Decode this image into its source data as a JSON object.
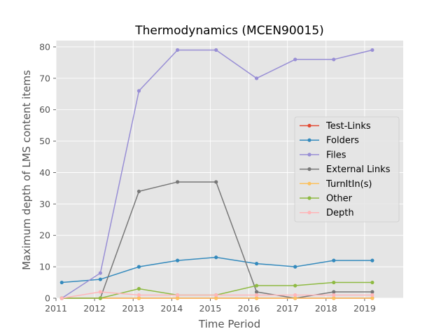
{
  "chart_data": {
    "type": "line",
    "title": "Thermodynamics (MCEN90015)",
    "xlabel": "Time Period",
    "ylabel": "Maximum depth of LMS content items",
    "xlim": [
      2011,
      2020
    ],
    "ylim": [
      0,
      82
    ],
    "x_ticks": [
      "2011",
      "2012",
      "2013",
      "2014",
      "2015",
      "2016",
      "2017",
      "2018",
      "2019"
    ],
    "y_ticks": [
      "0",
      "10",
      "20",
      "30",
      "40",
      "50",
      "60",
      "70",
      "80"
    ],
    "x": [
      2011.15,
      2012.15,
      2013.15,
      2014.15,
      2015.15,
      2016.2,
      2017.2,
      2018.2,
      2019.2
    ],
    "series": [
      {
        "name": "Test-Links",
        "color": "#e24a33",
        "values": [
          0,
          0,
          0,
          0,
          0,
          0,
          0,
          0,
          0
        ]
      },
      {
        "name": "Folders",
        "color": "#348abd",
        "values": [
          5,
          6,
          10,
          12,
          13,
          11,
          10,
          12,
          12
        ]
      },
      {
        "name": "Files",
        "color": "#988ed5",
        "values": [
          0,
          8,
          66,
          79,
          79,
          70,
          76,
          76,
          79
        ]
      },
      {
        "name": "External Links",
        "color": "#777777",
        "values": [
          0,
          0,
          34,
          37,
          37,
          2,
          0,
          2,
          2
        ]
      },
      {
        "name": "TurnItIn(s)",
        "color": "#fbc15e",
        "values": [
          0,
          0,
          0,
          0,
          0,
          0,
          0,
          0,
          0
        ]
      },
      {
        "name": "Other",
        "color": "#8eba42",
        "values": [
          0,
          0,
          3,
          1,
          1,
          4,
          4,
          5,
          5
        ]
      },
      {
        "name": "Depth",
        "color": "#ffb5b8",
        "values": [
          0,
          2,
          1,
          1,
          1,
          1,
          1,
          1,
          1
        ]
      }
    ],
    "grid": true,
    "legend_position": "center-right"
  }
}
